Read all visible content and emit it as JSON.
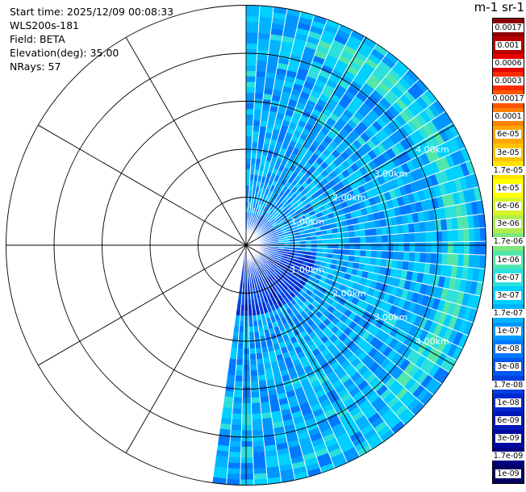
{
  "info": {
    "start_time": "Start time: 2025/12/09 00:08:33",
    "instrument": "WLS200s-181",
    "field": "Field: BETA",
    "elevation": "Elevation(deg): 35.00",
    "nrays": "NRays: 57"
  },
  "colorbar": {
    "title": "m-1 sr-1",
    "labels": [
      "0.0017",
      "0.001",
      "0.0006",
      "0.0003",
      "0.00017",
      "0.0001",
      "6e-05",
      "3e-05",
      "1.7e-05",
      "1e-05",
      "6e-06",
      "3e-06",
      "1.7e-06",
      "1e-06",
      "6e-07",
      "3e-07",
      "1.7e-07",
      "1e-07",
      "6e-08",
      "3e-08",
      "1.7e-08",
      "1e-08",
      "6e-09",
      "3e-09",
      "1.7e-09",
      "1e-09"
    ],
    "colors": [
      "#8b0000",
      "#b80000",
      "#e60000",
      "#ff2a00",
      "#ff5500",
      "#ff8000",
      "#ffa500",
      "#ffc400",
      "#ffe200",
      "#ffff00",
      "#d8f528",
      "#b0ec4e",
      "#7ee77e",
      "#50e6ac",
      "#2de0dc",
      "#00d0ff",
      "#00b4ff",
      "#0096ff",
      "#0078ff",
      "#0058f0",
      "#0040e0",
      "#0028d0",
      "#0018b8",
      "#0008a0",
      "#000080",
      "#000060"
    ]
  },
  "chart_data": {
    "type": "heatmap",
    "projection": "polar PPI (plan position indicator)",
    "field": "BETA",
    "units": "m-1 sr-1",
    "scale": "log",
    "elevation_deg": 35.0,
    "nrays": 57,
    "azimuth_coverage_deg": [
      0,
      188
    ],
    "range_rings_km": [
      1.0,
      2.0,
      3.0,
      4.0
    ],
    "range_ring_labels": [
      "1.00km",
      "2.00km",
      "3.00km",
      "4.00km"
    ],
    "max_range_km": 5.0,
    "spokes_every_deg": 30,
    "typical_value_range": [
      "3e-08",
      "6e-07"
    ],
    "enhanced_band": {
      "range_km": [
        4.2,
        4.7
      ],
      "azimuth_deg": [
        20,
        140
      ],
      "value_approx": "1e-06"
    },
    "weak_near_field": {
      "range_km": [
        0,
        1.5
      ],
      "azimuth_deg": [
        95,
        188
      ],
      "value_approx": "1e-08"
    }
  }
}
